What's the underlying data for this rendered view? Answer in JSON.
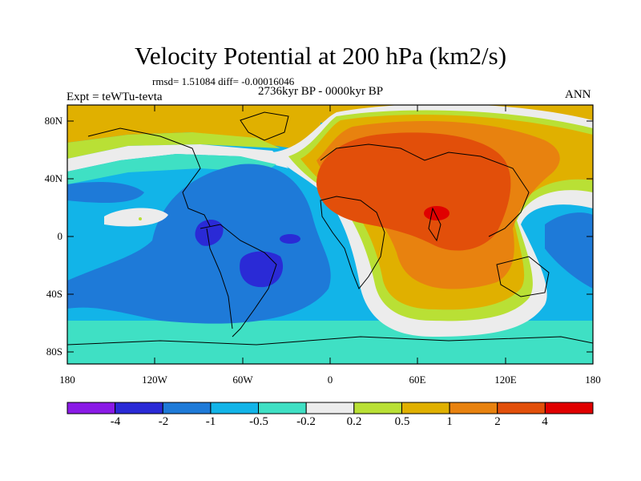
{
  "title": "Velocity Potential at 200 hPa (km2/s)",
  "stats_text": "rmsd= 1.51084 diff= -0.00016046",
  "period": "2736kyr BP - 0000kyr BP",
  "experiment": "Expt = teWTu-tevta",
  "season": "ANN",
  "lat_ticks": [
    "80N",
    "40N",
    "0",
    "40S",
    "80S"
  ],
  "lon_ticks": [
    "180",
    "120W",
    "60W",
    "0",
    "60E",
    "120E",
    "180"
  ],
  "colorbar": {
    "labels": [
      "-4",
      "-2",
      "-1",
      "-0.5",
      "-0.2",
      "0.2",
      "0.5",
      "1",
      "2",
      "4"
    ],
    "colors": [
      "#8a1ae6",
      "#2a2ad6",
      "#1e7ad8",
      "#12b4e8",
      "#3fe0c4",
      "#ececec",
      "#b9e035",
      "#e0b000",
      "#e8820f",
      "#e24f0a",
      "#e00000"
    ]
  }
}
